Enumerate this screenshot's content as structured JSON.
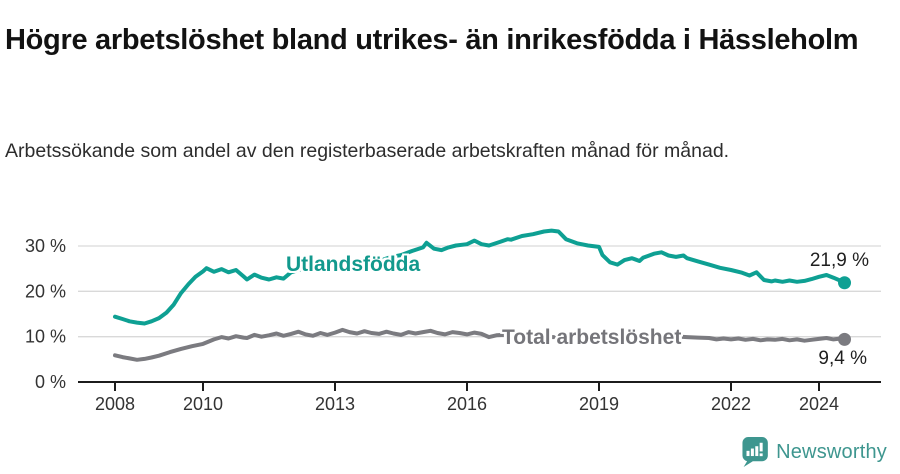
{
  "header": {
    "title": "Högre arbetslöshet bland utrikes- än inrikesfödda i Hässleholm",
    "subtitle": "Arbetssökande som andel av den registerbaserade arbetskraften månad för månad."
  },
  "footer": {
    "brand": "Newsworthy"
  },
  "colors": {
    "teal_line": "#0EA093",
    "gray_line": "#7B7B80",
    "teal_label": "#12998D",
    "gray_label": "#75757A",
    "grid": "#D9D9D9",
    "axis": "#1C1C1C",
    "tick_text": "#333333",
    "logo_teal": "#3E968F"
  },
  "chart_data": {
    "type": "line",
    "title": "Högre arbetslöshet bland utrikes- än inrikesfödda i Hässleholm",
    "subtitle": "Arbetssökande som andel av den registerbaserade arbetskraften månad för månad.",
    "xlabel": "",
    "ylabel": "",
    "x_unit": "decimal_year_monthly",
    "xlim": [
      2007.4,
      2025.4
    ],
    "ylim": [
      0,
      36.8
    ],
    "grid": "horizontal",
    "legend_position": "inline-on-line",
    "xticks": [
      {
        "value": 2008,
        "label": "2008"
      },
      {
        "value": 2010,
        "label": "2010"
      },
      {
        "value": 2013,
        "label": "2013"
      },
      {
        "value": 2016,
        "label": "2016"
      },
      {
        "value": 2019,
        "label": "2019"
      },
      {
        "value": 2022,
        "label": "2022"
      },
      {
        "value": 2024,
        "label": "2024"
      }
    ],
    "yticks": [
      {
        "value": 0,
        "label": "0 %"
      },
      {
        "value": 10,
        "label": "10 %"
      },
      {
        "value": 20,
        "label": "20 %"
      },
      {
        "value": 30,
        "label": "30 %"
      }
    ],
    "series": [
      {
        "name": "Utlandsfödda",
        "color": "#0EA093",
        "end_value": 21.9,
        "end_label": "21,9 %",
        "points": [
          [
            2008.0,
            14.4
          ],
          [
            2008.17,
            13.9
          ],
          [
            2008.33,
            13.4
          ],
          [
            2008.5,
            13.1
          ],
          [
            2008.67,
            12.9
          ],
          [
            2008.83,
            13.4
          ],
          [
            2009.0,
            14.1
          ],
          [
            2009.17,
            15.3
          ],
          [
            2009.33,
            17.0
          ],
          [
            2009.5,
            19.6
          ],
          [
            2009.67,
            21.6
          ],
          [
            2009.83,
            23.2
          ],
          [
            2010.0,
            24.4
          ],
          [
            2010.08,
            25.1
          ],
          [
            2010.25,
            24.3
          ],
          [
            2010.42,
            24.9
          ],
          [
            2010.58,
            24.2
          ],
          [
            2010.75,
            24.7
          ],
          [
            2010.92,
            23.3
          ],
          [
            2011.0,
            22.6
          ],
          [
            2011.17,
            23.7
          ],
          [
            2011.33,
            23.0
          ],
          [
            2011.5,
            22.6
          ],
          [
            2011.67,
            23.1
          ],
          [
            2011.83,
            22.8
          ],
          [
            2012.0,
            24.2
          ],
          [
            2012.25,
            24.9
          ],
          [
            2012.5,
            24.5
          ],
          [
            2012.75,
            25.1
          ],
          [
            2013.0,
            25.4
          ],
          [
            2013.25,
            25.9
          ],
          [
            2013.5,
            25.6
          ],
          [
            2013.75,
            26.3
          ],
          [
            2014.0,
            26.7
          ],
          [
            2014.25,
            27.5
          ],
          [
            2014.5,
            28.0
          ],
          [
            2014.75,
            28.9
          ],
          [
            2015.0,
            29.7
          ],
          [
            2015.08,
            30.7
          ],
          [
            2015.25,
            29.4
          ],
          [
            2015.42,
            29.1
          ],
          [
            2015.58,
            29.7
          ],
          [
            2015.75,
            30.1
          ],
          [
            2016.0,
            30.4
          ],
          [
            2016.17,
            31.2
          ],
          [
            2016.33,
            30.4
          ],
          [
            2016.5,
            30.1
          ],
          [
            2016.75,
            30.9
          ],
          [
            2016.92,
            31.5
          ],
          [
            2017.0,
            31.4
          ],
          [
            2017.25,
            32.2
          ],
          [
            2017.5,
            32.6
          ],
          [
            2017.75,
            33.2
          ],
          [
            2017.92,
            33.4
          ],
          [
            2018.08,
            33.2
          ],
          [
            2018.25,
            31.5
          ],
          [
            2018.5,
            30.6
          ],
          [
            2018.75,
            30.1
          ],
          [
            2019.0,
            29.8
          ],
          [
            2019.08,
            28.0
          ],
          [
            2019.25,
            26.4
          ],
          [
            2019.42,
            25.9
          ],
          [
            2019.58,
            26.9
          ],
          [
            2019.75,
            27.3
          ],
          [
            2019.92,
            26.7
          ],
          [
            2020.0,
            27.4
          ],
          [
            2020.25,
            28.3
          ],
          [
            2020.42,
            28.6
          ],
          [
            2020.58,
            27.9
          ],
          [
            2020.75,
            27.6
          ],
          [
            2020.92,
            27.9
          ],
          [
            2021.0,
            27.3
          ],
          [
            2021.25,
            26.6
          ],
          [
            2021.5,
            25.9
          ],
          [
            2021.75,
            25.2
          ],
          [
            2022.0,
            24.7
          ],
          [
            2022.25,
            24.1
          ],
          [
            2022.42,
            23.5
          ],
          [
            2022.58,
            24.2
          ],
          [
            2022.75,
            22.5
          ],
          [
            2022.92,
            22.2
          ],
          [
            2023.0,
            22.4
          ],
          [
            2023.17,
            22.1
          ],
          [
            2023.33,
            22.4
          ],
          [
            2023.5,
            22.1
          ],
          [
            2023.67,
            22.3
          ],
          [
            2023.83,
            22.7
          ],
          [
            2024.0,
            23.2
          ],
          [
            2024.17,
            23.6
          ],
          [
            2024.33,
            23.0
          ],
          [
            2024.45,
            22.5
          ],
          [
            2024.58,
            21.9
          ]
        ]
      },
      {
        "name": "Total arbetslöshet",
        "color": "#7B7B80",
        "end_value": 9.4,
        "end_label": "9,4 %",
        "points": [
          [
            2008.0,
            5.9
          ],
          [
            2008.17,
            5.5
          ],
          [
            2008.33,
            5.2
          ],
          [
            2008.5,
            4.9
          ],
          [
            2008.67,
            5.1
          ],
          [
            2008.83,
            5.4
          ],
          [
            2009.0,
            5.8
          ],
          [
            2009.25,
            6.6
          ],
          [
            2009.5,
            7.3
          ],
          [
            2009.75,
            7.9
          ],
          [
            2010.0,
            8.4
          ],
          [
            2010.25,
            9.4
          ],
          [
            2010.42,
            9.9
          ],
          [
            2010.58,
            9.6
          ],
          [
            2010.75,
            10.1
          ],
          [
            2010.92,
            9.8
          ],
          [
            2011.0,
            9.7
          ],
          [
            2011.17,
            10.4
          ],
          [
            2011.33,
            10.0
          ],
          [
            2011.5,
            10.3
          ],
          [
            2011.67,
            10.7
          ],
          [
            2011.83,
            10.2
          ],
          [
            2012.0,
            10.6
          ],
          [
            2012.17,
            11.1
          ],
          [
            2012.33,
            10.5
          ],
          [
            2012.5,
            10.2
          ],
          [
            2012.67,
            10.8
          ],
          [
            2012.83,
            10.4
          ],
          [
            2013.0,
            10.9
          ],
          [
            2013.17,
            11.5
          ],
          [
            2013.33,
            11.0
          ],
          [
            2013.5,
            10.7
          ],
          [
            2013.67,
            11.2
          ],
          [
            2013.83,
            10.8
          ],
          [
            2014.0,
            10.6
          ],
          [
            2014.17,
            11.1
          ],
          [
            2014.33,
            10.7
          ],
          [
            2014.5,
            10.4
          ],
          [
            2014.67,
            11.0
          ],
          [
            2014.83,
            10.7
          ],
          [
            2015.0,
            11.0
          ],
          [
            2015.17,
            11.3
          ],
          [
            2015.33,
            10.8
          ],
          [
            2015.5,
            10.5
          ],
          [
            2015.67,
            11.0
          ],
          [
            2015.83,
            10.8
          ],
          [
            2016.0,
            10.5
          ],
          [
            2016.17,
            10.9
          ],
          [
            2016.33,
            10.6
          ],
          [
            2016.5,
            9.9
          ],
          [
            2016.67,
            10.3
          ],
          [
            2016.83,
            10.4
          ],
          [
            2017.0,
            10.2
          ],
          [
            2017.5,
            10.0
          ],
          [
            2018.0,
            9.9
          ],
          [
            2018.5,
            9.8
          ],
          [
            2019.0,
            9.7
          ],
          [
            2019.5,
            9.6
          ],
          [
            2020.0,
            9.9
          ],
          [
            2020.5,
            10.2
          ],
          [
            2021.0,
            9.9
          ],
          [
            2021.25,
            9.8
          ],
          [
            2021.5,
            9.7
          ],
          [
            2021.67,
            9.4
          ],
          [
            2021.83,
            9.6
          ],
          [
            2022.0,
            9.4
          ],
          [
            2022.17,
            9.6
          ],
          [
            2022.33,
            9.3
          ],
          [
            2022.5,
            9.5
          ],
          [
            2022.67,
            9.2
          ],
          [
            2022.83,
            9.4
          ],
          [
            2023.0,
            9.3
          ],
          [
            2023.17,
            9.5
          ],
          [
            2023.33,
            9.2
          ],
          [
            2023.5,
            9.4
          ],
          [
            2023.67,
            9.1
          ],
          [
            2023.83,
            9.3
          ],
          [
            2024.0,
            9.5
          ],
          [
            2024.17,
            9.7
          ],
          [
            2024.33,
            9.4
          ],
          [
            2024.5,
            9.6
          ],
          [
            2024.58,
            9.4
          ]
        ]
      }
    ]
  }
}
